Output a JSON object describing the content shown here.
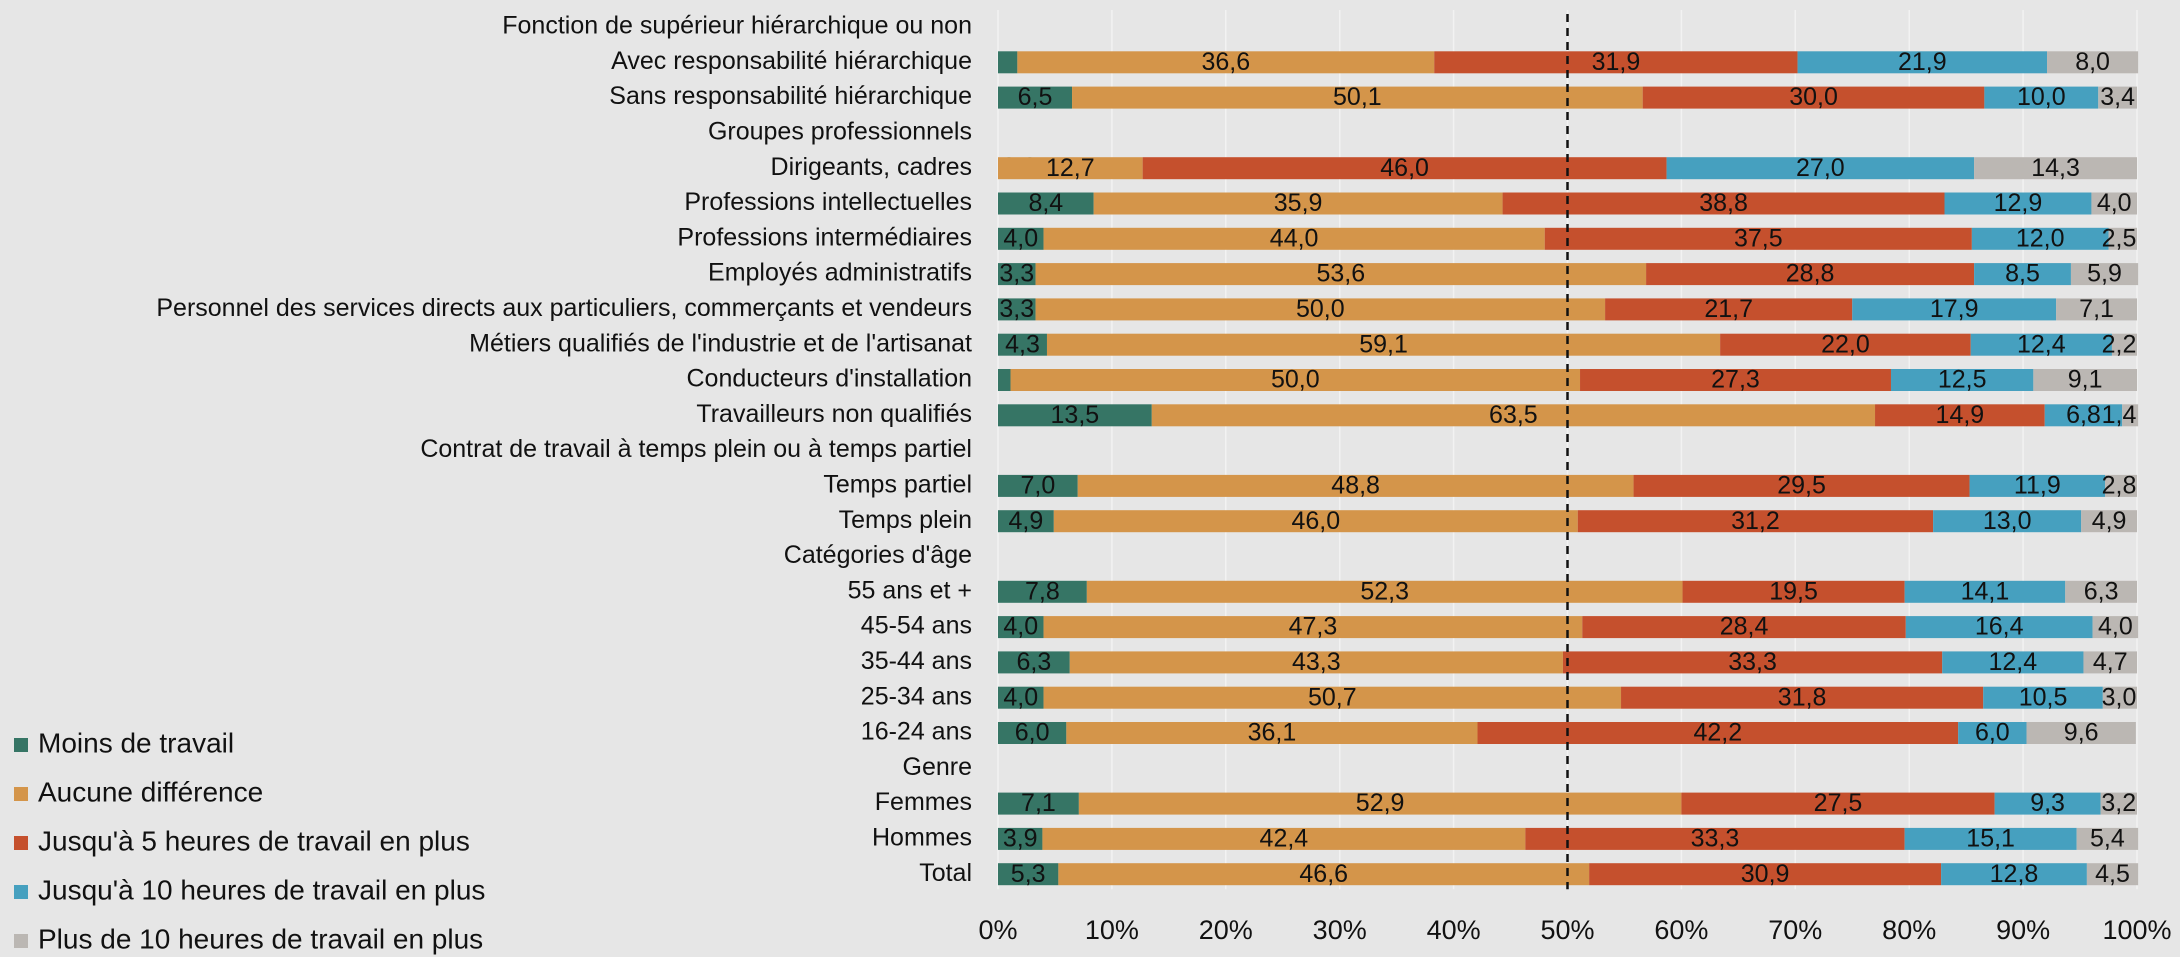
{
  "chart_data": {
    "type": "stacked_bar_horizontal",
    "categories": [
      "Fonction de supérieur hiérarchique ou non",
      "Avec responsabilité hiérarchique",
      "Sans responsabilité hiérarchique",
      "Groupes professionnels",
      "Dirigeants, cadres",
      "Professions intellectuelles",
      "Professions intermédiaires",
      "Employés administratifs",
      "Personnel des services directs aux particuliers, commerçants et vendeurs",
      "Métiers qualifiés de l'industrie et de l'artisanat",
      "Conducteurs d'installation",
      "Travailleurs non qualifiés",
      "Contrat de travail à temps plein ou à temps partiel",
      "Temps partiel",
      "Temps plein",
      "Catégories d'âge",
      "55 ans et +",
      "45-54 ans",
      "35-44 ans",
      "25-34 ans",
      "16-24 ans",
      "Genre",
      "Femmes",
      "Hommes",
      "Total"
    ],
    "series": [
      {
        "name": "Moins de travail",
        "color": "#367565",
        "values": [
          null,
          1.7,
          6.5,
          null,
          0.0,
          8.4,
          4.0,
          3.3,
          3.3,
          4.3,
          1.1,
          13.5,
          null,
          7.0,
          4.9,
          null,
          7.8,
          4.0,
          6.3,
          4.0,
          6.0,
          null,
          7.1,
          3.9,
          5.3
        ],
        "value_labels": [
          null,
          "1,7",
          "6,5",
          null,
          "0,0",
          "8,4",
          "4,0",
          "3,3",
          "3,3",
          "4,3",
          "1,1",
          "13,5",
          null,
          "7,0",
          "4,9",
          null,
          "7,8",
          "4,0",
          "6,3",
          "4,0",
          "6,0",
          null,
          "7,1",
          "3,9",
          "5,3"
        ]
      },
      {
        "name": "Aucune différence",
        "color": "#d4954a",
        "values": [
          null,
          36.6,
          50.1,
          null,
          12.7,
          35.9,
          44.0,
          53.6,
          50.0,
          59.1,
          50.0,
          63.5,
          null,
          48.8,
          46.0,
          null,
          52.3,
          47.3,
          43.3,
          50.7,
          36.1,
          null,
          52.9,
          42.4,
          46.6
        ],
        "value_labels": [
          null,
          "36,6",
          "50,1",
          null,
          "12,7",
          "35,9",
          "44,0",
          "53,6",
          "50,0",
          "59,1",
          "50,0",
          "63,5",
          null,
          "48,8",
          "46,0",
          null,
          "52,3",
          "47,3",
          "43,3",
          "50,7",
          "36,1",
          null,
          "52,9",
          "42,4",
          "46,6"
        ]
      },
      {
        "name": "Jusqu'à 5 heures de travail en plus",
        "color": "#c5502d",
        "values": [
          null,
          31.9,
          30.0,
          null,
          46.0,
          38.8,
          37.5,
          28.8,
          21.7,
          22.0,
          27.3,
          14.9,
          null,
          29.5,
          31.2,
          null,
          19.5,
          28.4,
          33.3,
          31.8,
          42.2,
          null,
          27.5,
          33.3,
          30.9
        ],
        "value_labels": [
          null,
          "31,9",
          "30,0",
          null,
          "46,0",
          "38,8",
          "37,5",
          "28,8",
          "21,7",
          "22,0",
          "27,3",
          "14,9",
          null,
          "29,5",
          "31,2",
          null,
          "19,5",
          "28,4",
          "33,3",
          "31,8",
          "42,2",
          null,
          "27,5",
          "33,3",
          "30,9"
        ]
      },
      {
        "name": "Jusqu'à 10 heures de travail en plus",
        "color": "#46a0bf",
        "values": [
          null,
          21.9,
          10.0,
          null,
          27.0,
          12.9,
          12.0,
          8.5,
          17.9,
          12.4,
          12.5,
          6.8,
          null,
          11.9,
          13.0,
          null,
          14.1,
          16.4,
          12.4,
          10.5,
          6.0,
          null,
          9.3,
          15.1,
          12.8
        ],
        "value_labels": [
          null,
          "21,9",
          "10,0",
          null,
          "27,0",
          "12,9",
          "12,0",
          "8,5",
          "17,9",
          "12,4",
          "12,5",
          "6,8",
          null,
          "11,9",
          "13,0",
          null,
          "14,1",
          "16,4",
          "12,4",
          "10,5",
          "6,0",
          null,
          "9,3",
          "15,1",
          "12,8"
        ]
      },
      {
        "name": "Plus de 10 heures de travail en plus",
        "color": "#bbb7b3",
        "values": [
          null,
          8.0,
          3.4,
          null,
          14.3,
          4.0,
          2.5,
          5.9,
          7.1,
          2.2,
          9.1,
          1.4,
          null,
          2.8,
          4.9,
          null,
          6.3,
          4.0,
          4.7,
          3.0,
          9.6,
          null,
          3.2,
          5.4,
          4.5
        ],
        "value_labels": [
          null,
          "8,0",
          "3,4",
          null,
          "14,3",
          "4,0",
          "2,5",
          "5,9",
          "7,1",
          "2,2",
          "9,1",
          "1,4",
          null,
          "2,8",
          "4,9",
          null,
          "6,3",
          "4,0",
          "4,7",
          "3,0",
          "9,6",
          null,
          "3,2",
          "5,4",
          "4,5"
        ]
      }
    ],
    "xlim": [
      0,
      100
    ],
    "xticks": [
      {
        "value": 0,
        "label": "0%"
      },
      {
        "value": 10,
        "label": "10%"
      },
      {
        "value": 20,
        "label": "20%"
      },
      {
        "value": 30,
        "label": "30%"
      },
      {
        "value": 40,
        "label": "40%"
      },
      {
        "value": 50,
        "label": "50%"
      },
      {
        "value": 60,
        "label": "60%"
      },
      {
        "value": 70,
        "label": "70%"
      },
      {
        "value": 80,
        "label": "80%"
      },
      {
        "value": 90,
        "label": "90%"
      },
      {
        "value": 100,
        "label": "100%"
      }
    ],
    "grid": true,
    "reference_line": 50,
    "legend": "bottom-left"
  }
}
